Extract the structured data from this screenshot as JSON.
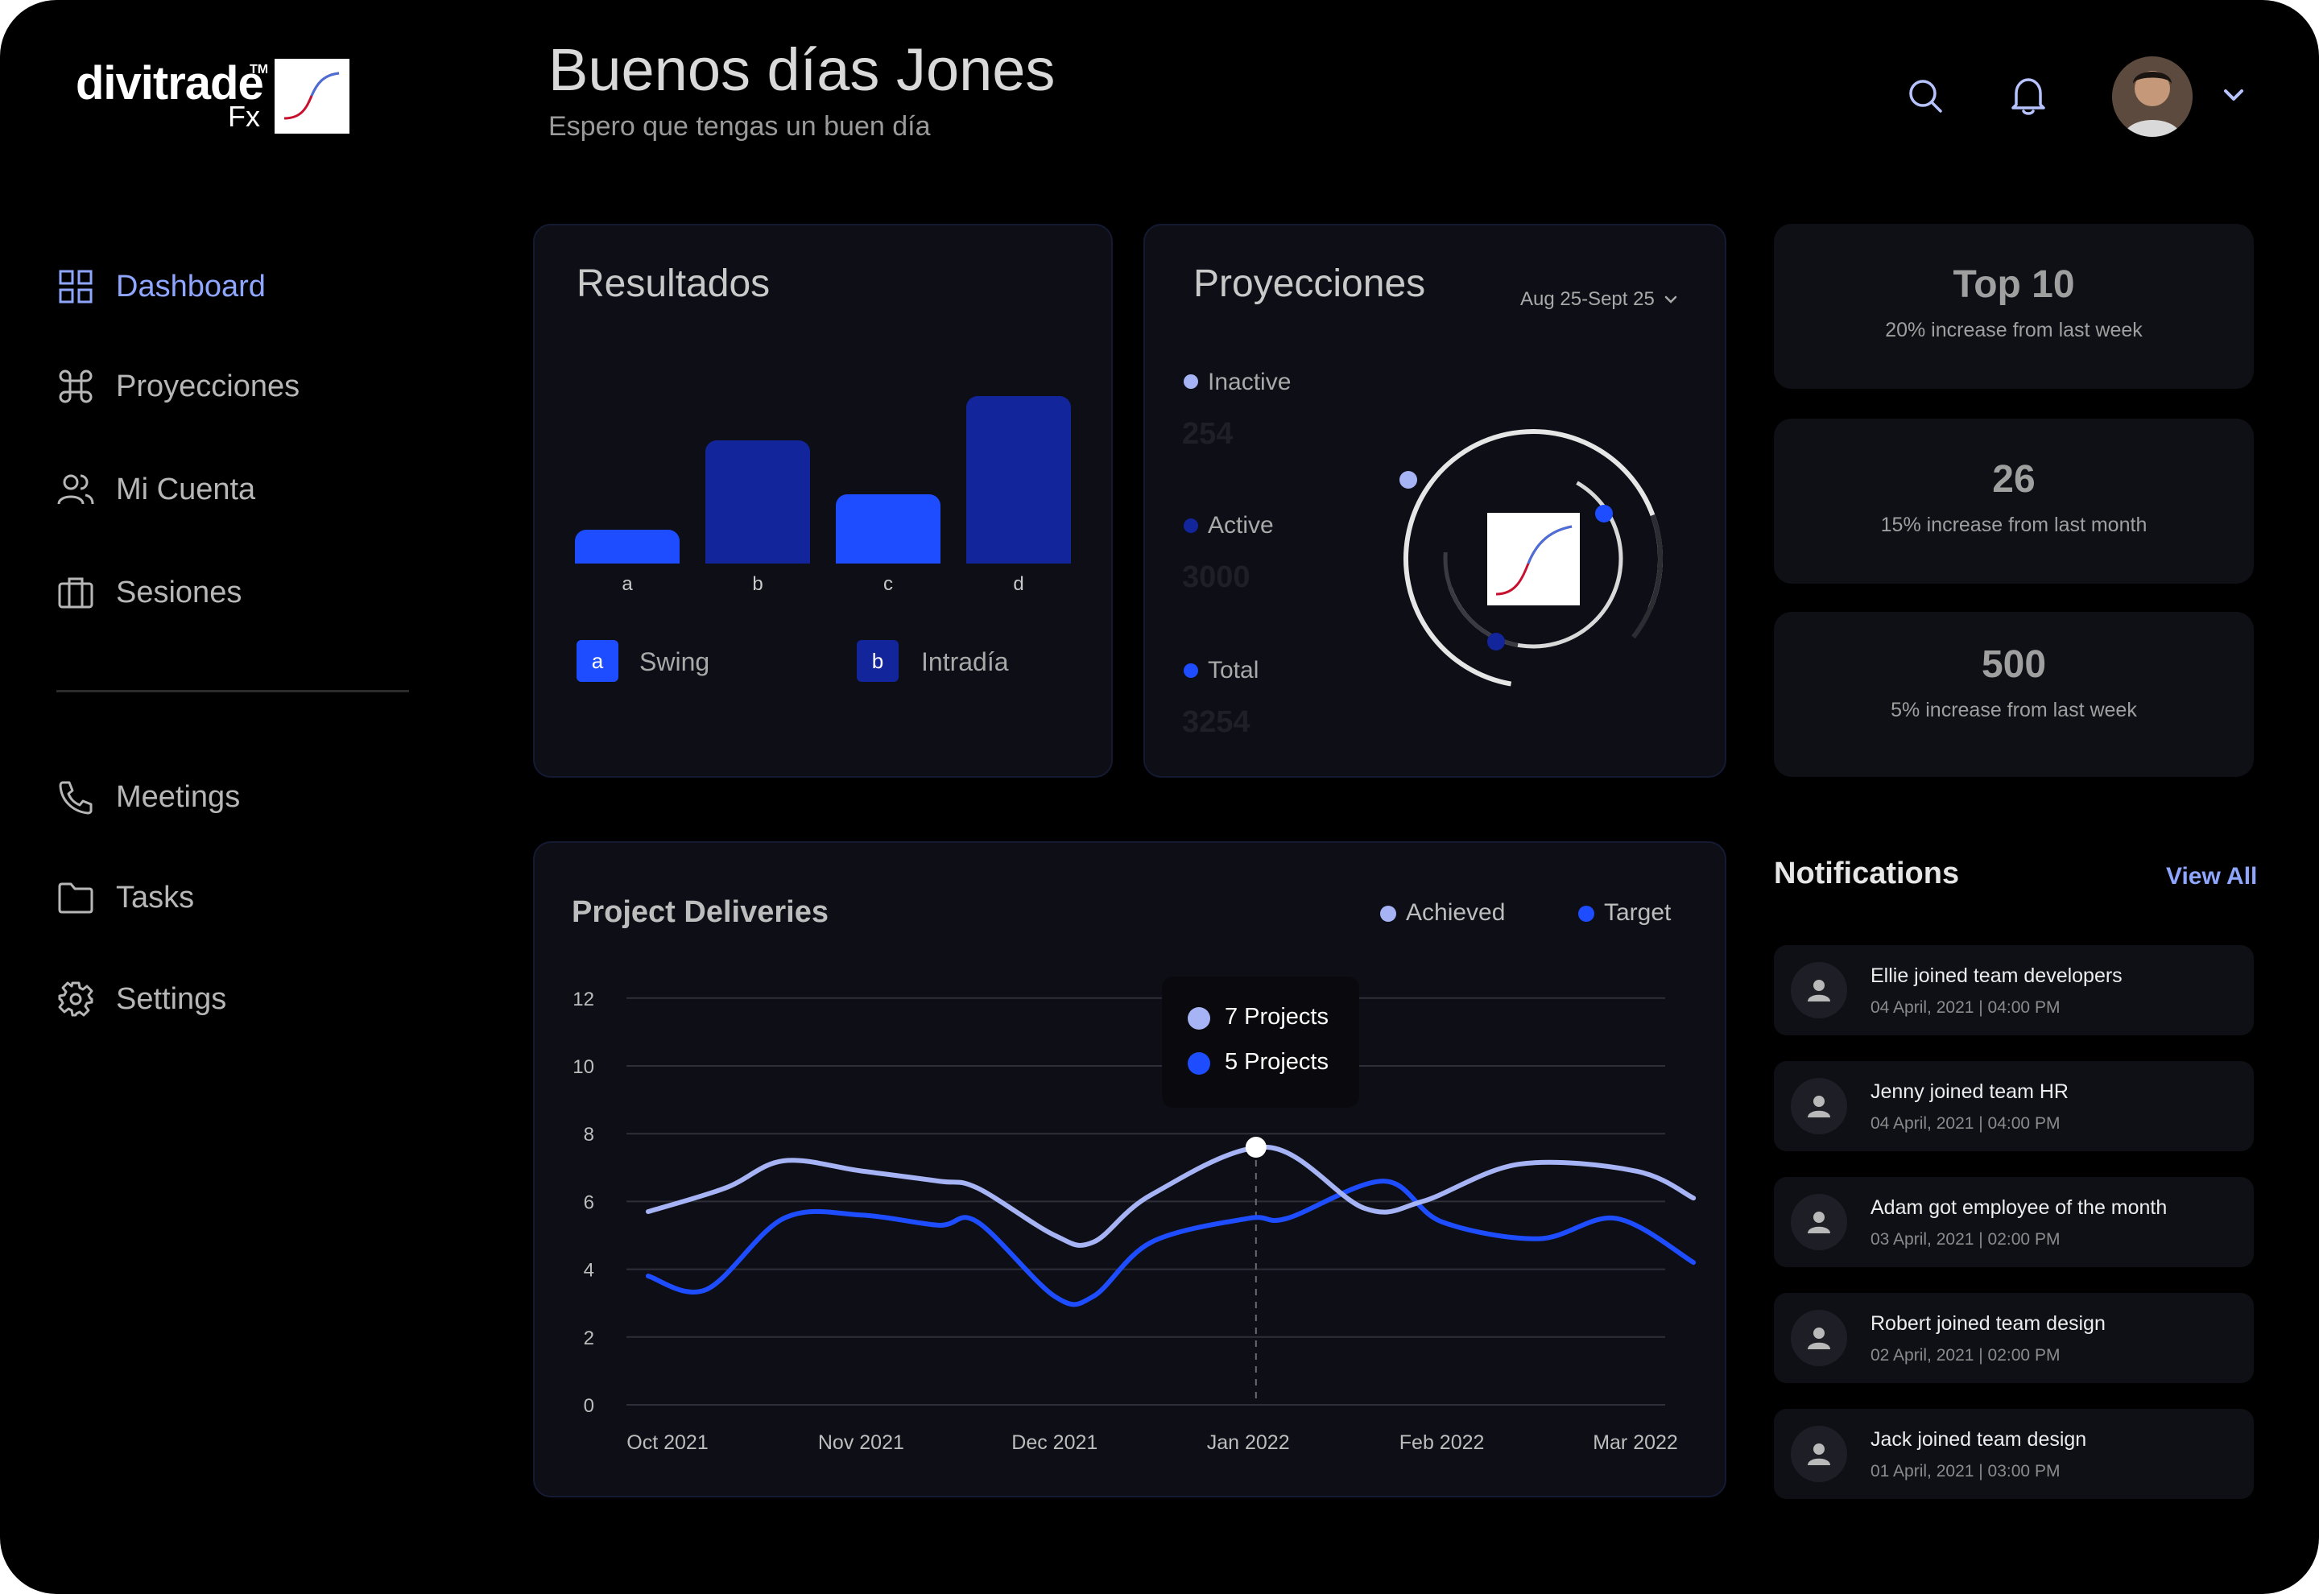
{
  "brand": {
    "name": "divitrade",
    "tm": "TM",
    "sub": "Fx"
  },
  "header": {
    "greeting": "Buenos días Jones",
    "subtitle": "Espero que tengas un buen día",
    "icons": [
      "search-icon",
      "bell-icon",
      "avatar",
      "chevron-down-icon"
    ]
  },
  "sidebar": {
    "items": [
      {
        "label": "Dashboard",
        "icon": "grid-icon"
      },
      {
        "label": "Proyecciones",
        "icon": "command-icon"
      },
      {
        "label": "Mi Cuenta",
        "icon": "users-icon"
      },
      {
        "label": "Sesiones",
        "icon": "briefcase-icon"
      },
      {
        "label": "Meetings",
        "icon": "phone-icon"
      },
      {
        "label": "Tasks",
        "icon": "folder-icon"
      },
      {
        "label": "Settings",
        "icon": "gear-icon"
      }
    ]
  },
  "resultados": {
    "title": "Resultados",
    "legend": [
      {
        "chip": "a",
        "label": "Swing",
        "color": "#1e4dff"
      },
      {
        "chip": "b",
        "label": "Intradía",
        "color": "#13259a"
      }
    ]
  },
  "proyecciones": {
    "title": "Proyecciones",
    "range": "Aug 25-Sept 25",
    "items": [
      {
        "label": "Inactive",
        "value": "254",
        "color": "#a6b4f5"
      },
      {
        "label": "Active",
        "value": "3000",
        "color": "#13259a"
      },
      {
        "label": "Total",
        "value": "3254",
        "color": "#1e4dff"
      }
    ]
  },
  "stats": [
    {
      "value": "Top 10",
      "sub": "20% increase from last week"
    },
    {
      "value": "26",
      "sub": "15% increase from last month"
    },
    {
      "value": "500",
      "sub": "5% increase from last week"
    }
  ],
  "deliveries": {
    "title": "Project Deliveries",
    "legend": [
      {
        "label": "Achieved",
        "color": "#a6b4f5"
      },
      {
        "label": "Target",
        "color": "#1e4dff"
      }
    ],
    "tooltip": [
      "7 Projects",
      "5 Projects"
    ]
  },
  "notifications": {
    "title": "Notifications",
    "view_all": "View All",
    "items": [
      {
        "text": "Ellie joined team developers",
        "time": "04 April, 2021 | 04:00 PM"
      },
      {
        "text": "Jenny joined team HR",
        "time": "04 April, 2021 | 04:00 PM"
      },
      {
        "text": "Adam got employee of the month",
        "time": "03 April, 2021 | 02:00 PM"
      },
      {
        "text": "Robert joined team design",
        "time": "02 April, 2021 | 02:00 PM"
      },
      {
        "text": "Jack joined team design",
        "time": "01 April, 2021 | 03:00 PM"
      }
    ]
  },
  "chart_data": [
    {
      "type": "bar",
      "categories": [
        "a",
        "b",
        "c",
        "d"
      ],
      "values": [
        2,
        7.3,
        4.1,
        9.9
      ],
      "colors": [
        "#1e4dff",
        "#13259a",
        "#1e4dff",
        "#13259a"
      ],
      "title": "Resultados"
    },
    {
      "type": "line",
      "title": "Project Deliveries",
      "categories": [
        "Oct 2021",
        "Nov 2021",
        "Dec 2021",
        "Jan 2022",
        "Feb 2022",
        "Mar 2022"
      ],
      "ylim": [
        0,
        12
      ],
      "yticks": [
        0,
        2,
        4,
        6,
        8,
        10,
        12
      ],
      "grid": true,
      "series": [
        {
          "name": "Achieved",
          "color": "#a6b4f5",
          "x": [
            -0.1,
            0.3,
            0.6,
            1.0,
            1.4,
            1.6,
            2.0,
            2.2,
            2.5,
            3.1,
            3.6,
            3.9,
            4.4,
            5.0,
            5.3
          ],
          "y": [
            5.7,
            6.4,
            7.2,
            6.9,
            6.6,
            6.4,
            5.0,
            4.8,
            6.2,
            7.6,
            5.8,
            6.0,
            7.1,
            6.9,
            6.1
          ]
        },
        {
          "name": "Target",
          "color": "#1e4dff",
          "x": [
            -0.1,
            0.2,
            0.6,
            1.0,
            1.4,
            1.6,
            2.0,
            2.2,
            2.5,
            3.0,
            3.2,
            3.7,
            4.0,
            4.5,
            4.9,
            5.3
          ],
          "y": [
            3.8,
            3.4,
            5.5,
            5.6,
            5.3,
            5.4,
            3.2,
            3.2,
            4.8,
            5.5,
            5.5,
            6.6,
            5.4,
            4.9,
            5.5,
            4.2
          ]
        }
      ]
    }
  ]
}
